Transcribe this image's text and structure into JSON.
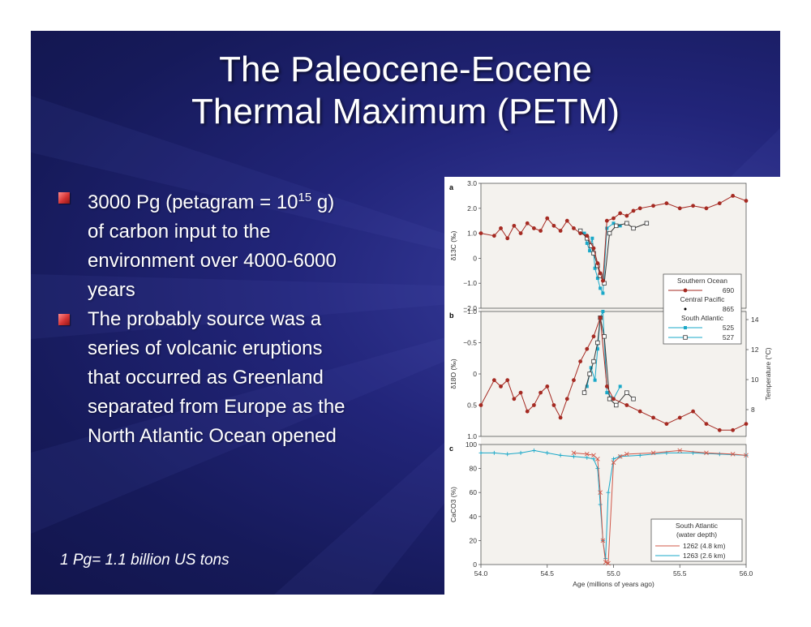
{
  "slide": {
    "title_line1": "The Paleocene-Eocene",
    "title_line2": "Thermal Maximum (PETM)",
    "bullets": [
      {
        "lines": [
          "3000 Pg (petagram = 10",
          "15",
          " g)",
          "of carbon input to the",
          "environment over 4000-6000",
          "years"
        ]
      },
      {
        "lines": [
          "The probably source was a",
          "series of volcanic eruptions",
          "that occurred as Greenland",
          "separated from Europe as the",
          "North Atlantic Ocean opened"
        ]
      }
    ],
    "footnote": "1 Pg= 1.1 billion US tons"
  },
  "colors": {
    "southern_ocean": "#a52a22",
    "south_atlantic": "#1aa8c8",
    "bullet_red": "#d43434"
  },
  "chart_data": [
    {
      "type": "line",
      "panel": "a",
      "ylabel": "δ13C (‰)",
      "ylim": [
        -2.0,
        3.0
      ],
      "yticks": [
        "3.0",
        "2.0",
        "1.0",
        "0",
        "−1.0",
        "−2.0"
      ],
      "legend": {
        "entries": [
          {
            "name": "Southern Ocean",
            "site": "690"
          },
          {
            "name": "Central Pacific",
            "site": "865"
          },
          {
            "name": "South Atlantic",
            "site": "525"
          },
          {
            "name": "",
            "site": "527"
          }
        ]
      },
      "series": [
        {
          "name": "690",
          "x": [
            54.0,
            54.1,
            54.15,
            54.2,
            54.25,
            54.3,
            54.35,
            54.4,
            54.45,
            54.5,
            54.55,
            54.6,
            54.65,
            54.7,
            54.75,
            54.8,
            54.85,
            54.88,
            54.9,
            54.92,
            54.95,
            55.0,
            55.05,
            55.1,
            55.15,
            55.2,
            55.3,
            55.4,
            55.5,
            55.6,
            55.7,
            55.8,
            55.9,
            56.0
          ],
          "y": [
            1.0,
            0.9,
            1.2,
            0.8,
            1.3,
            1.0,
            1.4,
            1.2,
            1.1,
            1.6,
            1.3,
            1.1,
            1.5,
            1.2,
            1.0,
            0.9,
            0.4,
            -0.2,
            -0.6,
            -0.9,
            1.5,
            1.6,
            1.8,
            1.7,
            1.9,
            2.0,
            2.1,
            2.2,
            2.0,
            2.1,
            2.0,
            2.2,
            2.5,
            2.3
          ]
        },
        {
          "name": "525",
          "x": [
            54.78,
            54.8,
            54.82,
            54.84,
            54.86,
            54.88,
            54.9,
            54.92,
            54.95,
            55.0,
            55.05
          ],
          "y": [
            1.0,
            0.6,
            0.3,
            0.8,
            -0.4,
            -0.8,
            -1.2,
            -1.4,
            1.2,
            1.4,
            1.3
          ]
        },
        {
          "name": "527",
          "x": [
            54.75,
            54.8,
            54.83,
            54.85,
            54.88,
            54.9,
            54.93,
            54.97,
            55.02,
            55.1,
            55.15,
            55.25
          ],
          "y": [
            1.1,
            0.8,
            0.5,
            0.2,
            -0.3,
            -0.7,
            -1.0,
            1.0,
            1.3,
            1.4,
            1.2,
            1.4
          ]
        }
      ]
    },
    {
      "type": "line",
      "panel": "b",
      "ylabel": "δ18O (‰)",
      "ylim": [
        -1.0,
        1.0
      ],
      "yticks": [
        "−1.0",
        "−0.5",
        "0",
        "0.5",
        "1.0"
      ],
      "y2label": "Temperature (°C)",
      "y2ticks": [
        "14",
        "12",
        "10",
        "8"
      ],
      "series": [
        {
          "name": "690",
          "x": [
            54.0,
            54.1,
            54.15,
            54.2,
            54.25,
            54.3,
            54.35,
            54.4,
            54.45,
            54.5,
            54.55,
            54.6,
            54.65,
            54.7,
            54.75,
            54.8,
            54.85,
            54.9,
            54.95,
            55.0,
            55.1,
            55.2,
            55.3,
            55.4,
            55.5,
            55.6,
            55.7,
            55.8,
            55.9,
            56.0
          ],
          "y": [
            0.5,
            0.1,
            0.2,
            0.1,
            0.4,
            0.3,
            0.6,
            0.5,
            0.3,
            0.2,
            0.5,
            0.7,
            0.4,
            0.1,
            -0.2,
            -0.4,
            -0.6,
            -0.9,
            0.2,
            0.4,
            0.5,
            0.6,
            0.7,
            0.8,
            0.7,
            0.6,
            0.8,
            0.9,
            0.9,
            0.8
          ]
        },
        {
          "name": "525",
          "x": [
            54.8,
            54.83,
            54.86,
            54.88,
            54.9,
            54.92,
            54.95,
            55.0,
            55.05
          ],
          "y": [
            0.2,
            -0.1,
            0.1,
            -0.4,
            -0.9,
            -1.0,
            0.3,
            0.4,
            0.2
          ]
        },
        {
          "name": "527",
          "x": [
            54.78,
            54.82,
            54.85,
            54.88,
            54.9,
            54.93,
            54.97,
            55.02,
            55.1,
            55.15
          ],
          "y": [
            0.3,
            0.0,
            -0.2,
            -0.5,
            -0.9,
            -0.6,
            0.4,
            0.5,
            0.3,
            0.4
          ]
        }
      ]
    },
    {
      "type": "line",
      "panel": "c",
      "ylabel": "CaCO3 (%)",
      "ylim": [
        0,
        100
      ],
      "yticks": [
        "100",
        "80",
        "60",
        "40",
        "20",
        "0"
      ],
      "xlabel": "Age (millions of years ago)",
      "xlim": [
        54.0,
        56.0
      ],
      "xticks": [
        "54.0",
        "54.5",
        "55.0",
        "55.5",
        "56.0"
      ],
      "legend": {
        "title_line1": "South Atlantic",
        "title_line2": "(water depth)",
        "entries": [
          {
            "name": "1262 (4.8 km)"
          },
          {
            "name": "1263 (2.6 km)"
          }
        ]
      },
      "series": [
        {
          "name": "1262 (4.8 km)",
          "x": [
            54.7,
            54.8,
            54.85,
            54.88,
            54.9,
            54.92,
            54.94,
            54.96,
            55.0,
            55.05,
            55.1,
            55.3,
            55.5,
            55.7,
            55.9,
            56.0
          ],
          "y": [
            93,
            92,
            91,
            88,
            60,
            20,
            2,
            1,
            85,
            90,
            92,
            93,
            95,
            93,
            92,
            91
          ]
        },
        {
          "name": "1263 (2.6 km)",
          "x": [
            54.0,
            54.1,
            54.2,
            54.3,
            54.4,
            54.5,
            54.6,
            54.7,
            54.8,
            54.85,
            54.88,
            54.9,
            54.92,
            54.94,
            54.96,
            55.0,
            55.05,
            55.2,
            55.4,
            55.6,
            55.8,
            56.0
          ],
          "y": [
            93,
            93,
            92,
            93,
            95,
            93,
            91,
            90,
            89,
            88,
            80,
            50,
            20,
            5,
            60,
            88,
            90,
            91,
            93,
            93,
            92,
            91
          ]
        }
      ]
    }
  ]
}
